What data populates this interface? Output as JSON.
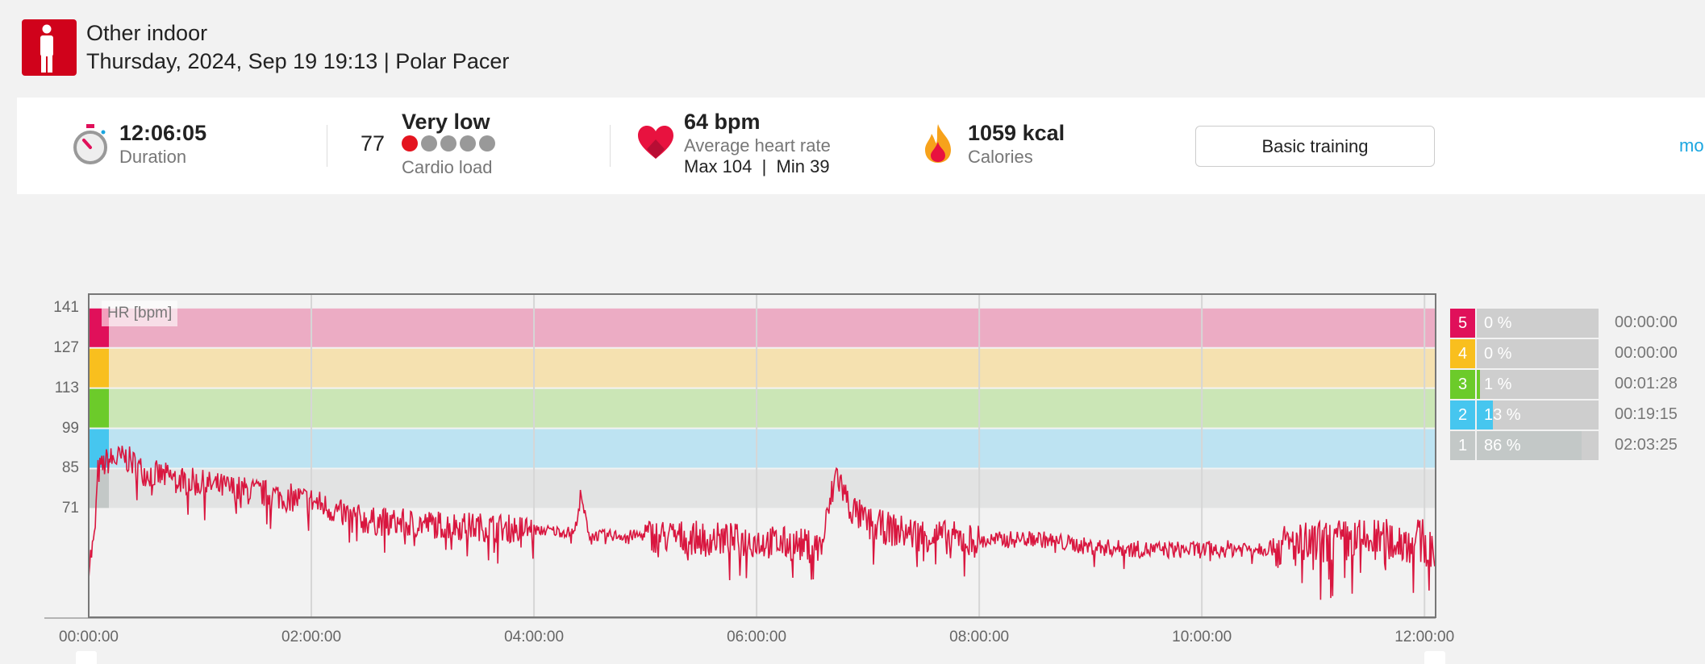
{
  "header": {
    "sport": "Other indoor",
    "subtitle": "Thursday, 2024, Sep 19 19:13 | Polar Pacer",
    "icon": "person-icon"
  },
  "summary": {
    "duration": {
      "value": "12:06:05",
      "label": "Duration"
    },
    "cardio": {
      "value": "77",
      "level": "Very low",
      "label": "Cardio load",
      "filled_dots": 1,
      "total_dots": 5
    },
    "heart": {
      "value": "64 bpm",
      "label": "Average heart rate",
      "maxmin": "Max 104  |  Min 39"
    },
    "calories": {
      "value": "1059 kcal",
      "label": "Calories"
    },
    "basic_button": "Basic training",
    "more_link": "mo"
  },
  "colors": {
    "accent": "#d0021b",
    "line": "#d9163f",
    "link": "#1aa6e0"
  },
  "zones": [
    {
      "zone": "5",
      "pct": "0 %",
      "fraction": 0,
      "time": "00:00:00",
      "color": "#e0105a",
      "band": "#ecacc4"
    },
    {
      "zone": "4",
      "pct": "0 %",
      "fraction": 0,
      "time": "00:00:00",
      "color": "#f9bf1e",
      "band": "#f5e1b0"
    },
    {
      "zone": "3",
      "pct": "1 %",
      "fraction": 0.01,
      "time": "00:01:28",
      "color": "#6ccb2a",
      "band": "#cbe6b6"
    },
    {
      "zone": "2",
      "pct": "13 %",
      "fraction": 0.13,
      "time": "00:19:15",
      "color": "#46c6ef",
      "band": "#bde3f2"
    },
    {
      "zone": "1",
      "pct": "86 %",
      "fraction": 0.86,
      "time": "02:03:25",
      "color": "#c3c8c7",
      "band": "#e2e3e3"
    }
  ],
  "chart_data": {
    "type": "line",
    "label": "HR [bpm]",
    "ylabel": "HR [bpm]",
    "yticks": [
      "141",
      "127",
      "113",
      "99",
      "85",
      "71"
    ],
    "zone_bounds": [
      141,
      127,
      113,
      99,
      85,
      71
    ],
    "ylim": [
      33.5,
      146
    ],
    "xlim_minutes": [
      0,
      726
    ],
    "xticks": [
      "00:00:00",
      "02:00:00",
      "04:00:00",
      "06:00:00",
      "08:00:00",
      "10:00:00",
      "12:00:00"
    ],
    "trend": [
      [
        0,
        52
      ],
      [
        3,
        60
      ],
      [
        5,
        84
      ],
      [
        10,
        88
      ],
      [
        20,
        89
      ],
      [
        30,
        84
      ],
      [
        45,
        82
      ],
      [
        60,
        80
      ],
      [
        90,
        77
      ],
      [
        120,
        74
      ],
      [
        135,
        70
      ],
      [
        150,
        67
      ],
      [
        180,
        66
      ],
      [
        210,
        65
      ],
      [
        240,
        64
      ],
      [
        262,
        63
      ],
      [
        265,
        76
      ],
      [
        270,
        62
      ],
      [
        300,
        62
      ],
      [
        330,
        61
      ],
      [
        360,
        60
      ],
      [
        395,
        58
      ],
      [
        403,
        84
      ],
      [
        410,
        72
      ],
      [
        420,
        66
      ],
      [
        440,
        63
      ],
      [
        480,
        60
      ],
      [
        510,
        61
      ],
      [
        540,
        58
      ],
      [
        570,
        57
      ],
      [
        600,
        57
      ],
      [
        640,
        58
      ],
      [
        680,
        60
      ],
      [
        720,
        60
      ],
      [
        726,
        56
      ]
    ]
  }
}
